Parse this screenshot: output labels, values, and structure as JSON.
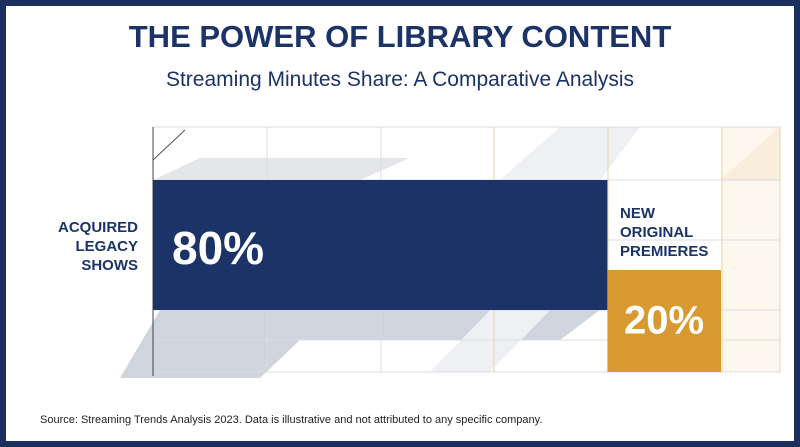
{
  "chart_data": {
    "type": "bar",
    "title": "THE POWER OF LIBRARY CONTENT",
    "subtitle": "Streaming Minutes Share: A Comparative Analysis",
    "categories": [
      "ACQUIRED LEGACY SHOWS",
      "NEW ORIGINAL PREMIERES"
    ],
    "values": [
      80,
      20
    ],
    "value_labels": [
      "80%",
      "20%"
    ],
    "colors": [
      "#1b3366",
      "#d89a30"
    ],
    "xlim": [
      0,
      100
    ],
    "source": "Source: Streaming Trends Analysis 2023. Data is illustrative and not attributed to any specific company."
  }
}
